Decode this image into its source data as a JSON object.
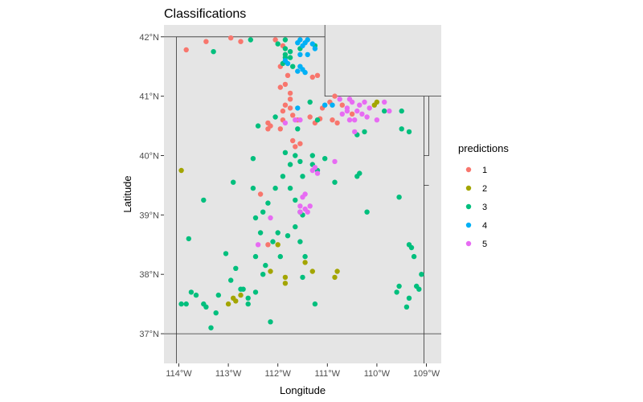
{
  "chart_data": {
    "type": "scatter",
    "title": "Classifications",
    "xlabel": "Longitude",
    "ylabel": "Latitude",
    "xlim": [
      -114.3,
      -108.7
    ],
    "ylim": [
      36.5,
      42.2
    ],
    "x_ticks": [
      {
        "value": -114,
        "label": "114°W"
      },
      {
        "value": -113,
        "label": "113°W"
      },
      {
        "value": -112,
        "label": "112°W"
      },
      {
        "value": -111,
        "label": "111°W"
      },
      {
        "value": -110,
        "label": "110°W"
      },
      {
        "value": -109,
        "label": "109°W"
      }
    ],
    "y_ticks": [
      {
        "value": 37,
        "label": "37°N"
      },
      {
        "value": 38,
        "label": "38°N"
      },
      {
        "value": 39,
        "label": "39°N"
      },
      {
        "value": 40,
        "label": "40°N"
      },
      {
        "value": 41,
        "label": "41°N"
      },
      {
        "value": 42,
        "label": "42°N"
      }
    ],
    "grid": false,
    "panel_color": "#e5e5e5",
    "legend": {
      "title": "predictions",
      "placement": "right"
    },
    "boundaries": [
      [
        [
          -114.05,
          42.0
        ],
        [
          -111.05,
          42.0
        ],
        [
          -111.05,
          41.0
        ],
        [
          -109.05,
          41.0
        ],
        [
          -109.05,
          37.0
        ],
        [
          -114.05,
          37.0
        ],
        [
          -114.05,
          42.0
        ]
      ],
      [
        [
          -111.05,
          42.0
        ],
        [
          -111.05,
          42.2
        ]
      ],
      [
        [
          -109.05,
          41.0
        ],
        [
          -108.7,
          41.0
        ]
      ],
      [
        [
          -109.05,
          37.0
        ],
        [
          -108.7,
          37.0
        ]
      ],
      [
        [
          -114.05,
          37.0
        ],
        [
          -114.3,
          37.0
        ]
      ],
      [
        [
          -114.05,
          37.0
        ],
        [
          -114.05,
          36.5
        ]
      ],
      [
        [
          -109.05,
          37.0
        ],
        [
          -109.05,
          36.5
        ]
      ],
      [
        [
          -114.05,
          42.0
        ],
        [
          -114.3,
          42.0
        ]
      ],
      [
        [
          -109.05,
          40.0
        ],
        [
          -108.95,
          40.0
        ],
        [
          -108.95,
          41.0
        ]
      ],
      [
        [
          -109.05,
          39.5
        ],
        [
          -108.95,
          39.5
        ]
      ]
    ],
    "series": [
      {
        "name": "1",
        "color": "#F8766D",
        "points": [
          [
            -113.85,
            41.78
          ],
          [
            -113.45,
            41.92
          ],
          [
            -112.95,
            41.98
          ],
          [
            -112.75,
            41.92
          ],
          [
            -112.05,
            41.95
          ],
          [
            -111.9,
            41.85
          ],
          [
            -111.95,
            41.5
          ],
          [
            -111.8,
            41.35
          ],
          [
            -111.3,
            41.32
          ],
          [
            -111.2,
            41.35
          ],
          [
            -111.75,
            41.05
          ],
          [
            -111.75,
            40.95
          ],
          [
            -111.85,
            40.85
          ],
          [
            -111.75,
            40.8
          ],
          [
            -111.9,
            40.75
          ],
          [
            -111.7,
            40.68
          ],
          [
            -111.6,
            40.6
          ],
          [
            -111.9,
            40.6
          ],
          [
            -111.95,
            40.45
          ],
          [
            -112.15,
            40.5
          ],
          [
            -112.2,
            40.55
          ],
          [
            -112.2,
            40.45
          ],
          [
            -111.7,
            40.25
          ],
          [
            -111.65,
            40.15
          ],
          [
            -111.35,
            40.65
          ],
          [
            -111.15,
            40.62
          ],
          [
            -110.9,
            40.6
          ],
          [
            -110.8,
            40.55
          ],
          [
            -110.95,
            40.9
          ],
          [
            -110.85,
            41.0
          ],
          [
            -110.7,
            40.85
          ],
          [
            -110.5,
            40.7
          ],
          [
            -111.95,
            41.15
          ],
          [
            -111.85,
            41.2
          ],
          [
            -112.35,
            39.35
          ],
          [
            -112.2,
            38.5
          ],
          [
            -111.55,
            40.2
          ],
          [
            -111.25,
            40.55
          ],
          [
            -111.1,
            40.8
          ]
        ]
      },
      {
        "name": "2",
        "color": "#A3A500",
        "points": [
          [
            -113.95,
            39.75
          ],
          [
            -112.0,
            38.5
          ],
          [
            -111.85,
            37.95
          ],
          [
            -111.85,
            37.85
          ],
          [
            -111.45,
            38.2
          ],
          [
            -111.3,
            38.05
          ],
          [
            -110.8,
            38.05
          ],
          [
            -110.85,
            37.95
          ],
          [
            -112.9,
            37.6
          ],
          [
            -112.85,
            37.55
          ],
          [
            -113.0,
            37.5
          ],
          [
            -112.75,
            37.65
          ],
          [
            -110.05,
            40.85
          ],
          [
            -110.0,
            40.9
          ],
          [
            -112.15,
            38.05
          ]
        ]
      },
      {
        "name": "3",
        "color": "#00BF7D",
        "points": [
          [
            -113.3,
            41.75
          ],
          [
            -112.55,
            41.95
          ],
          [
            -112.0,
            41.88
          ],
          [
            -111.85,
            41.95
          ],
          [
            -111.75,
            41.75
          ],
          [
            -111.85,
            41.7
          ],
          [
            -111.75,
            41.65
          ],
          [
            -111.9,
            41.55
          ],
          [
            -111.7,
            41.5
          ],
          [
            -111.55,
            41.8
          ],
          [
            -111.25,
            41.85
          ],
          [
            -111.85,
            41.8
          ],
          [
            -112.4,
            40.5
          ],
          [
            -112.5,
            39.95
          ],
          [
            -111.85,
            40.05
          ],
          [
            -111.65,
            40.0
          ],
          [
            -111.55,
            39.9
          ],
          [
            -111.3,
            40.0
          ],
          [
            -111.05,
            39.95
          ],
          [
            -111.3,
            39.85
          ],
          [
            -111.5,
            39.65
          ],
          [
            -111.9,
            39.65
          ],
          [
            -112.5,
            39.45
          ],
          [
            -111.75,
            39.45
          ],
          [
            -111.65,
            39.25
          ],
          [
            -111.2,
            39.75
          ],
          [
            -110.85,
            39.55
          ],
          [
            -110.4,
            39.65
          ],
          [
            -110.35,
            39.7
          ],
          [
            -110.2,
            39.05
          ],
          [
            -109.55,
            39.3
          ],
          [
            -110.4,
            40.35
          ],
          [
            -110.25,
            40.4
          ],
          [
            -109.35,
            40.4
          ],
          [
            -109.5,
            40.45
          ],
          [
            -109.5,
            40.75
          ],
          [
            -109.85,
            40.75
          ],
          [
            -113.8,
            38.6
          ],
          [
            -113.5,
            39.25
          ],
          [
            -112.9,
            39.55
          ],
          [
            -112.45,
            38.95
          ],
          [
            -112.35,
            38.7
          ],
          [
            -112.1,
            38.55
          ],
          [
            -111.95,
            38.3
          ],
          [
            -112.0,
            38.7
          ],
          [
            -111.8,
            38.65
          ],
          [
            -111.55,
            38.55
          ],
          [
            -111.65,
            38.8
          ],
          [
            -111.45,
            38.3
          ],
          [
            -111.5,
            37.95
          ],
          [
            -111.25,
            37.5
          ],
          [
            -112.45,
            38.3
          ],
          [
            -112.25,
            38.15
          ],
          [
            -112.3,
            38.0
          ],
          [
            -112.6,
            37.5
          ],
          [
            -112.45,
            37.7
          ],
          [
            -112.6,
            37.6
          ],
          [
            -112.75,
            37.75
          ],
          [
            -112.95,
            37.9
          ],
          [
            -112.85,
            38.1
          ],
          [
            -113.2,
            37.65
          ],
          [
            -113.25,
            37.35
          ],
          [
            -113.45,
            37.45
          ],
          [
            -113.5,
            37.5
          ],
          [
            -113.65,
            37.65
          ],
          [
            -113.75,
            37.7
          ],
          [
            -113.85,
            37.5
          ],
          [
            -113.95,
            37.5
          ],
          [
            -113.35,
            37.1
          ],
          [
            -112.15,
            37.2
          ],
          [
            -112.05,
            39.45
          ],
          [
            -111.55,
            39.05
          ],
          [
            -111.5,
            39.0
          ],
          [
            -109.35,
            38.5
          ],
          [
            -109.3,
            38.45
          ],
          [
            -109.25,
            38.3
          ],
          [
            -109.1,
            38.0
          ],
          [
            -109.2,
            37.8
          ],
          [
            -109.55,
            37.8
          ],
          [
            -109.6,
            37.7
          ],
          [
            -109.35,
            37.6
          ],
          [
            -109.4,
            37.45
          ],
          [
            -109.15,
            37.75
          ],
          [
            -112.7,
            37.75
          ],
          [
            -113.05,
            38.35
          ],
          [
            -112.3,
            39.05
          ],
          [
            -112.2,
            39.2
          ],
          [
            -111.75,
            39.85
          ],
          [
            -111.6,
            40.45
          ],
          [
            -111.2,
            40.6
          ],
          [
            -111.35,
            40.9
          ],
          [
            -112.05,
            40.65
          ],
          [
            -111.85,
            41.65
          ]
        ]
      },
      {
        "name": "4",
        "color": "#00B0F6",
        "points": [
          [
            -111.55,
            41.95
          ],
          [
            -111.6,
            41.9
          ],
          [
            -111.5,
            41.85
          ],
          [
            -111.45,
            41.9
          ],
          [
            -111.4,
            41.95
          ],
          [
            -111.3,
            41.88
          ],
          [
            -111.4,
            41.7
          ],
          [
            -111.55,
            41.7
          ],
          [
            -111.85,
            41.6
          ],
          [
            -111.8,
            41.55
          ],
          [
            -111.55,
            41.5
          ],
          [
            -111.5,
            41.45
          ],
          [
            -111.45,
            41.4
          ],
          [
            -111.6,
            41.42
          ],
          [
            -111.05,
            40.85
          ],
          [
            -110.9,
            40.85
          ],
          [
            -111.6,
            40.8
          ],
          [
            -111.25,
            41.8
          ]
        ]
      },
      {
        "name": "5",
        "color": "#E76BF3",
        "points": [
          [
            -110.75,
            40.95
          ],
          [
            -110.55,
            40.95
          ],
          [
            -110.5,
            40.9
          ],
          [
            -110.35,
            40.85
          ],
          [
            -110.6,
            40.8
          ],
          [
            -110.4,
            40.75
          ],
          [
            -110.3,
            40.7
          ],
          [
            -110.55,
            40.6
          ],
          [
            -110.45,
            40.6
          ],
          [
            -110.2,
            40.65
          ],
          [
            -110.25,
            40.9
          ],
          [
            -110.15,
            40.8
          ],
          [
            -110.0,
            40.6
          ],
          [
            -109.75,
            40.75
          ],
          [
            -109.85,
            40.9
          ],
          [
            -111.45,
            39.35
          ],
          [
            -111.5,
            39.3
          ],
          [
            -111.55,
            39.15
          ],
          [
            -111.45,
            39.1
          ],
          [
            -111.35,
            39.15
          ],
          [
            -111.55,
            39.05
          ],
          [
            -111.4,
            39.05
          ],
          [
            -111.85,
            40.55
          ],
          [
            -111.55,
            40.6
          ],
          [
            -112.4,
            38.5
          ],
          [
            -112.15,
            38.95
          ],
          [
            -111.65,
            40.6
          ],
          [
            -110.85,
            39.9
          ],
          [
            -110.7,
            40.7
          ],
          [
            -110.45,
            40.4
          ],
          [
            -110.6,
            40.75
          ],
          [
            -111.2,
            39.7
          ],
          [
            -111.25,
            39.8
          ],
          [
            -111.3,
            39.75
          ]
        ]
      }
    ]
  }
}
